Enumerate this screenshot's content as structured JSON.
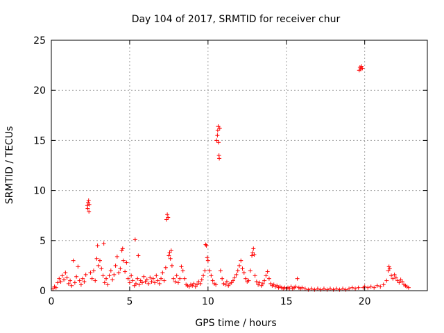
{
  "chart_data": {
    "type": "scatter",
    "title": "Day 104 of 2017, SRMTID for receiver chur",
    "xlabel": "GPS time / hours",
    "ylabel": "SRMTID / TECUs",
    "xlim": [
      0,
      24
    ],
    "ylim": [
      0,
      25
    ],
    "xticks": [
      0,
      5,
      10,
      15,
      20
    ],
    "xtick_labels": [
      "0",
      "5",
      "10",
      "15",
      "20"
    ],
    "yticks": [
      0,
      5,
      10,
      15,
      20,
      25
    ],
    "ytick_labels": [
      "0",
      "5",
      "10",
      "15",
      "20",
      "25"
    ],
    "grid": true,
    "marker": "plus",
    "color": "#ff0000",
    "series": [
      {
        "name": "SRMTID",
        "points": [
          [
            0.1,
            0.2
          ],
          [
            0.2,
            0.4
          ],
          [
            0.3,
            0.3
          ],
          [
            0.4,
            0.8
          ],
          [
            0.5,
            1.2
          ],
          [
            0.6,
            0.9
          ],
          [
            0.7,
            1.5
          ],
          [
            0.8,
            1.1
          ],
          [
            0.9,
            1.8
          ],
          [
            1.0,
            1.3
          ],
          [
            1.1,
            0.7
          ],
          [
            1.2,
            1.0
          ],
          [
            1.3,
            0.5
          ],
          [
            1.4,
            3.0
          ],
          [
            1.5,
            0.8
          ],
          [
            1.6,
            1.4
          ],
          [
            1.7,
            2.4
          ],
          [
            1.8,
            1.0
          ],
          [
            1.9,
            0.6
          ],
          [
            2.0,
            1.2
          ],
          [
            2.1,
            0.9
          ],
          [
            2.2,
            1.6
          ],
          [
            2.3,
            8.5
          ],
          [
            2.32,
            8.2
          ],
          [
            2.35,
            8.8
          ],
          [
            2.38,
            9.0
          ],
          [
            2.4,
            7.9
          ],
          [
            2.42,
            8.6
          ],
          [
            2.5,
            1.8
          ],
          [
            2.6,
            1.2
          ],
          [
            2.7,
            2.0
          ],
          [
            2.8,
            1.0
          ],
          [
            2.9,
            3.2
          ],
          [
            2.95,
            4.5
          ],
          [
            3.0,
            2.5
          ],
          [
            3.1,
            3.0
          ],
          [
            3.2,
            2.2
          ],
          [
            3.3,
            1.5
          ],
          [
            3.35,
            4.7
          ],
          [
            3.4,
            0.8
          ],
          [
            3.5,
            1.2
          ],
          [
            3.6,
            0.6
          ],
          [
            3.7,
            1.5
          ],
          [
            3.8,
            2.0
          ],
          [
            3.9,
            1.1
          ],
          [
            4.0,
            1.6
          ],
          [
            4.1,
            2.5
          ],
          [
            4.2,
            3.4
          ],
          [
            4.3,
            1.8
          ],
          [
            4.4,
            2.2
          ],
          [
            4.5,
            4.0
          ],
          [
            4.55,
            4.2
          ],
          [
            4.6,
            3.0
          ],
          [
            4.7,
            1.9
          ],
          [
            4.8,
            2.8
          ],
          [
            4.9,
            1.2
          ],
          [
            5.0,
            0.8
          ],
          [
            5.1,
            1.5
          ],
          [
            5.2,
            1.0
          ],
          [
            5.3,
            0.5
          ],
          [
            5.35,
            5.1
          ],
          [
            5.4,
            0.7
          ],
          [
            5.5,
            1.2
          ],
          [
            5.55,
            3.5
          ],
          [
            5.6,
            0.6
          ],
          [
            5.7,
            1.0
          ],
          [
            5.8,
            0.8
          ],
          [
            5.9,
            1.4
          ],
          [
            6.0,
            0.9
          ],
          [
            6.1,
            1.1
          ],
          [
            6.2,
            0.7
          ],
          [
            6.3,
            1.3
          ],
          [
            6.4,
            0.9
          ],
          [
            6.5,
            1.2
          ],
          [
            6.6,
            0.8
          ],
          [
            6.7,
            1.5
          ],
          [
            6.8,
            1.0
          ],
          [
            6.9,
            0.7
          ],
          [
            7.0,
            1.2
          ],
          [
            7.1,
            1.8
          ],
          [
            7.2,
            1.0
          ],
          [
            7.3,
            2.3
          ],
          [
            7.35,
            7.1
          ],
          [
            7.4,
            7.6
          ],
          [
            7.45,
            7.3
          ],
          [
            7.5,
            3.5
          ],
          [
            7.55,
            3.8
          ],
          [
            7.6,
            3.2
          ],
          [
            7.65,
            4.0
          ],
          [
            7.7,
            2.5
          ],
          [
            7.8,
            1.2
          ],
          [
            7.9,
            0.9
          ],
          [
            8.0,
            1.5
          ],
          [
            8.1,
            0.8
          ],
          [
            8.2,
            1.2
          ],
          [
            8.3,
            2.4
          ],
          [
            8.4,
            2.0
          ],
          [
            8.5,
            1.2
          ],
          [
            8.6,
            0.6
          ],
          [
            8.7,
            0.5
          ],
          [
            8.8,
            0.4
          ],
          [
            8.9,
            0.6
          ],
          [
            9.0,
            0.5
          ],
          [
            9.1,
            0.7
          ],
          [
            9.2,
            0.4
          ],
          [
            9.3,
            0.6
          ],
          [
            9.4,
            0.9
          ],
          [
            9.5,
            0.7
          ],
          [
            9.6,
            1.1
          ],
          [
            9.7,
            1.5
          ],
          [
            9.8,
            2.0
          ],
          [
            9.85,
            4.6
          ],
          [
            9.9,
            4.5
          ],
          [
            9.95,
            3.3
          ],
          [
            10.0,
            3.0
          ],
          [
            10.1,
            2.0
          ],
          [
            10.2,
            1.5
          ],
          [
            10.3,
            1.0
          ],
          [
            10.4,
            0.7
          ],
          [
            10.5,
            0.6
          ],
          [
            10.55,
            15.0
          ],
          [
            10.6,
            15.5
          ],
          [
            10.62,
            16.0
          ],
          [
            10.65,
            16.4
          ],
          [
            10.67,
            14.8
          ],
          [
            10.7,
            13.5
          ],
          [
            10.72,
            13.2
          ],
          [
            10.75,
            16.2
          ],
          [
            10.8,
            2.0
          ],
          [
            10.9,
            1.2
          ],
          [
            11.0,
            0.7
          ],
          [
            11.1,
            0.6
          ],
          [
            11.2,
            0.9
          ],
          [
            11.3,
            0.5
          ],
          [
            11.4,
            0.7
          ],
          [
            11.5,
            0.8
          ],
          [
            11.6,
            1.0
          ],
          [
            11.7,
            1.3
          ],
          [
            11.8,
            1.6
          ],
          [
            11.9,
            2.0
          ],
          [
            12.0,
            2.5
          ],
          [
            12.1,
            3.0
          ],
          [
            12.2,
            2.2
          ],
          [
            12.3,
            1.8
          ],
          [
            12.4,
            1.2
          ],
          [
            12.5,
            0.9
          ],
          [
            12.6,
            1.0
          ],
          [
            12.7,
            2.0
          ],
          [
            12.8,
            3.5
          ],
          [
            12.85,
            3.8
          ],
          [
            12.9,
            4.2
          ],
          [
            12.95,
            3.6
          ],
          [
            13.0,
            1.5
          ],
          [
            13.1,
            0.9
          ],
          [
            13.2,
            0.6
          ],
          [
            13.3,
            0.8
          ],
          [
            13.4,
            0.5
          ],
          [
            13.5,
            0.7
          ],
          [
            13.6,
            1.0
          ],
          [
            13.7,
            1.5
          ],
          [
            13.8,
            1.9
          ],
          [
            13.9,
            1.2
          ],
          [
            14.0,
            0.7
          ],
          [
            14.1,
            0.5
          ],
          [
            14.2,
            0.6
          ],
          [
            14.3,
            0.4
          ],
          [
            14.4,
            0.5
          ],
          [
            14.5,
            0.3
          ],
          [
            14.6,
            0.4
          ],
          [
            14.7,
            0.3
          ],
          [
            14.8,
            0.2
          ],
          [
            14.9,
            0.3
          ],
          [
            15.0,
            0.2
          ],
          [
            15.1,
            0.3
          ],
          [
            15.2,
            0.2
          ],
          [
            15.3,
            0.4
          ],
          [
            15.4,
            0.2
          ],
          [
            15.5,
            0.3
          ],
          [
            15.6,
            0.4
          ],
          [
            15.7,
            1.2
          ],
          [
            15.8,
            0.3
          ],
          [
            15.9,
            0.2
          ],
          [
            16.0,
            0.3
          ],
          [
            16.2,
            0.2
          ],
          [
            16.4,
            0.1
          ],
          [
            16.6,
            0.2
          ],
          [
            16.8,
            0.1
          ],
          [
            17.0,
            0.2
          ],
          [
            17.2,
            0.1
          ],
          [
            17.4,
            0.2
          ],
          [
            17.6,
            0.1
          ],
          [
            17.8,
            0.2
          ],
          [
            18.0,
            0.1
          ],
          [
            18.2,
            0.2
          ],
          [
            18.4,
            0.1
          ],
          [
            18.6,
            0.2
          ],
          [
            18.8,
            0.1
          ],
          [
            19.0,
            0.2
          ],
          [
            19.2,
            0.3
          ],
          [
            19.4,
            0.2
          ],
          [
            19.6,
            0.3
          ],
          [
            19.65,
            22.0
          ],
          [
            19.7,
            22.3
          ],
          [
            19.75,
            22.1
          ],
          [
            19.8,
            22.4
          ],
          [
            19.85,
            22.2
          ],
          [
            19.9,
            0.3
          ],
          [
            20.0,
            0.4
          ],
          [
            20.2,
            0.3
          ],
          [
            20.4,
            0.4
          ],
          [
            20.6,
            0.3
          ],
          [
            20.8,
            0.5
          ],
          [
            21.0,
            0.4
          ],
          [
            21.2,
            0.6
          ],
          [
            21.4,
            1.0
          ],
          [
            21.5,
            2.0
          ],
          [
            21.55,
            2.4
          ],
          [
            21.6,
            2.2
          ],
          [
            21.7,
            1.5
          ],
          [
            21.8,
            1.2
          ],
          [
            21.9,
            1.6
          ],
          [
            22.0,
            1.3
          ],
          [
            22.1,
            1.0
          ],
          [
            22.2,
            0.8
          ],
          [
            22.3,
            1.1
          ],
          [
            22.4,
            0.9
          ],
          [
            22.5,
            0.6
          ],
          [
            22.6,
            0.5
          ],
          [
            22.7,
            0.4
          ],
          [
            22.8,
            0.3
          ]
        ]
      }
    ]
  }
}
